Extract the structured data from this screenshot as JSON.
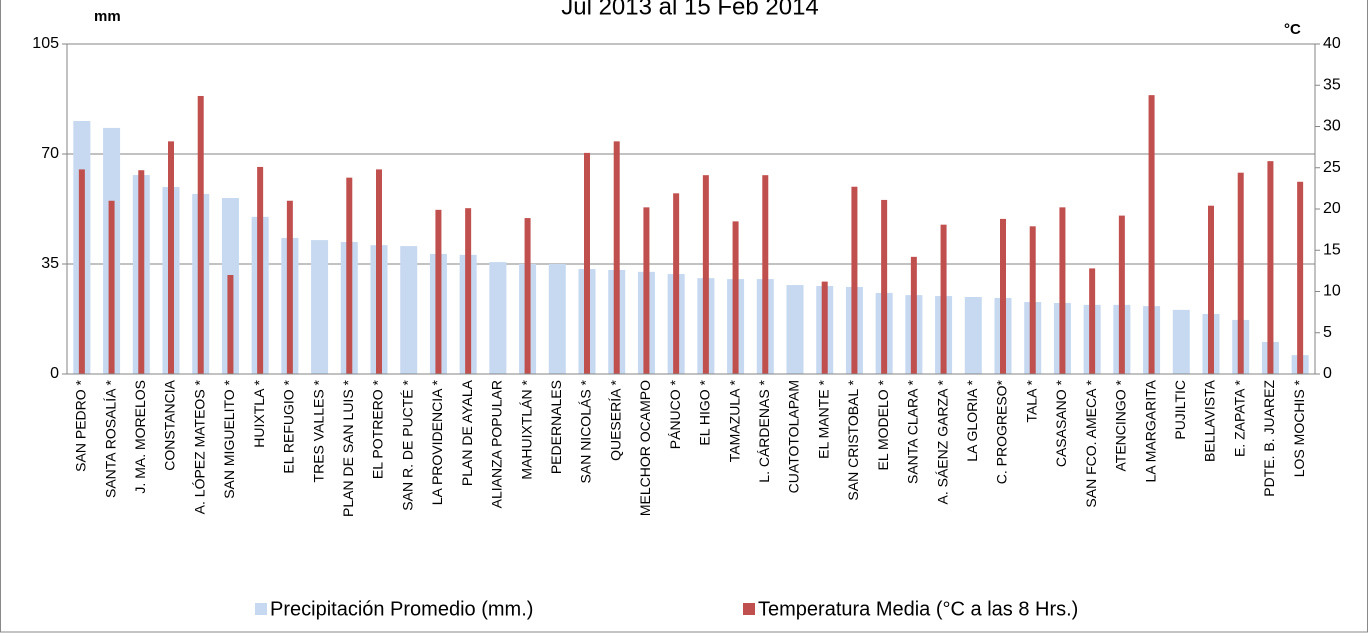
{
  "chart_data": {
    "type": "bar",
    "title": "Jul 2013 al 15 Feb 2014",
    "y_label": "mm",
    "y2_label": "°C",
    "categories": [
      "SAN PEDRO *",
      "SANTA ROSALÍA *",
      "J. MA. MORELOS",
      "CONSTANCIA",
      "A. LÓPEZ MATEOS *",
      "SAN MIGUELITO *",
      "HUIXTLA *",
      "EL REFUGIO *",
      "TRES VALLES *",
      "PLAN DE SAN LUIS *",
      "EL POTRERO *",
      "SAN R. DE PUCTÉ *",
      "LA PROVIDENCIA *",
      "PLAN DE AYALA",
      "ALIANZA POPULAR",
      "MAHUIXTLÁN *",
      "PEDERNALES",
      "SAN NICOLÁS *",
      "QUESERÍA *",
      "MELCHOR OCAMPO",
      "PÁNUCO *",
      "EL HIGO *",
      "TAMAZULA *",
      "L. CÁRDENAS *",
      "CUATOTOLAPAM",
      "EL MANTE *",
      "SAN CRISTOBAL *",
      "EL MODELO *",
      "SANTA CLARA *",
      "A. SÁENZ GARZA *",
      "LA GLORIA *",
      "C. PROGRESO*",
      "TALA *",
      "CASASANO *",
      "SAN FCO. AMECA *",
      "ATENCINGO *",
      "LA MARGARITA",
      "PUJILTIC",
      "BELLAVISTA",
      "E. ZAPATA *",
      "PDTE. B. JUAREZ",
      "LOS MOCHIS *"
    ],
    "series": [
      {
        "name": "Precipitación Promedio (mm.)",
        "color": "#c6d9f1",
        "values": [
          80.5,
          78.3,
          63.3,
          59.5,
          57.3,
          56,
          50,
          43.3,
          42.6,
          42,
          41,
          40.7,
          38.2,
          37.9,
          35.6,
          35,
          35,
          33.4,
          33.1,
          32.5,
          31.8,
          30.5,
          30.2,
          30.2,
          28.3,
          28,
          27.7,
          25.8,
          25.1,
          24.8,
          24.5,
          24.2,
          22.9,
          22.6,
          22,
          22,
          21.6,
          20.4,
          19.1,
          17.2,
          10.2,
          6
        ]
      },
      {
        "name": "Temperatura Media (°C a las 8 Hrs.)",
        "color": "#c0504d",
        "axis": "y2",
        "values": [
          24.8,
          21,
          24.7,
          28.2,
          33.7,
          12,
          25.1,
          21,
          null,
          23.8,
          24.8,
          null,
          19.9,
          20.1,
          null,
          18.9,
          null,
          26.8,
          28.2,
          20.2,
          21.9,
          24.1,
          18.5,
          24.1,
          null,
          11.2,
          22.7,
          21.1,
          14.2,
          18.1,
          null,
          18.8,
          17.9,
          20.2,
          12.8,
          19.2,
          33.8,
          null,
          20.4,
          24.4,
          25.8,
          23.3
        ]
      }
    ],
    "ylim": [
      0,
      105
    ],
    "yticks": [
      0,
      35,
      70,
      105
    ],
    "y2lim": [
      0,
      40
    ],
    "y2ticks": [
      0,
      5,
      10,
      15,
      20,
      25,
      30,
      35,
      40
    ],
    "grid": true,
    "legend": "bottom"
  }
}
